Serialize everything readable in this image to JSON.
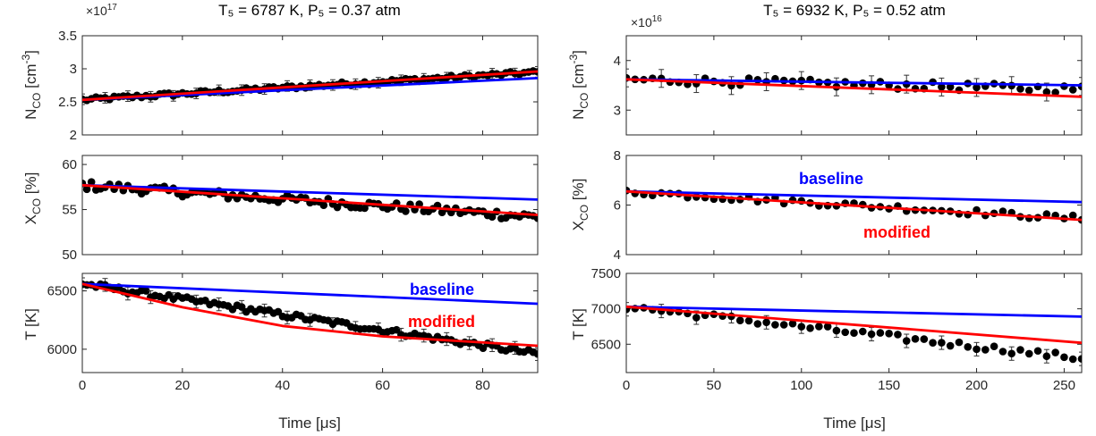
{
  "colors": {
    "baseline": "#0000ff",
    "modified": "#ff0000",
    "points": "#000000",
    "axis": "#262626"
  },
  "columns": [
    {
      "title": "T₅ = 6787 K, P₅ = 0.37 atm",
      "xlabel": "Time [μs]",
      "xticks": [
        "0",
        "20",
        "40",
        "60",
        "80"
      ]
    },
    {
      "title": "T₅ = 6932 K, P₅ = 0.52 atm",
      "xlabel": "Time [μs]",
      "xticks": [
        "0",
        "50",
        "100",
        "150",
        "200",
        "250"
      ]
    }
  ],
  "ylabels": {
    "nco_main": "N",
    "nco_sub": "CO",
    "nco_unit": "[cm",
    "nco_exp": "-3",
    "nco_close": "]",
    "xco_main": "X",
    "xco_sub": "CO",
    "xco_unit": "[%]",
    "t_main": "T [K]"
  },
  "exponents": [
    {
      "base": "×10",
      "exp": "17"
    },
    {
      "base": "×10",
      "exp": "16"
    }
  ],
  "annotations": {
    "baseline": "baseline",
    "modified": "modified"
  },
  "chart_data": [
    {
      "type": "scatter",
      "panel": "N_CO left",
      "title": "T₅ = 6787 K, P₅ = 0.37 atm",
      "xlabel": "",
      "ylabel": "N_CO [cm^-3]",
      "xlim": [
        0,
        91
      ],
      "ylim": [
        2,
        3.5
      ],
      "yticks": [
        "2",
        "2.5",
        "3",
        "3.5"
      ],
      "yscale_label": "×10^17",
      "points": {
        "x_start": 0,
        "x_step": 0.91,
        "y_start": 2.53,
        "y_end": 2.95,
        "noise": 0.03,
        "errorbar": 0.08,
        "errorbar_every": 5
      },
      "series": [
        {
          "name": "baseline",
          "x": [
            0,
            91
          ],
          "y": [
            2.53,
            2.86
          ]
        },
        {
          "name": "modified",
          "x": [
            0,
            91
          ],
          "y": [
            2.53,
            2.96
          ]
        }
      ]
    },
    {
      "type": "scatter",
      "panel": "X_CO left",
      "xlabel": "",
      "ylabel": "X_CO [%]",
      "xlim": [
        0,
        91
      ],
      "ylim": [
        50,
        61
      ],
      "yticks": [
        "50",
        "55",
        "60"
      ],
      "points": {
        "x_start": 0,
        "x_step": 0.91,
        "y_start": 57.7,
        "y_end": 54.2,
        "noise": 0.5,
        "errorbar": 0,
        "errorbar_every": 0
      },
      "series": [
        {
          "name": "baseline",
          "x": [
            0,
            91
          ],
          "y": [
            57.7,
            56.1
          ]
        },
        {
          "name": "modified",
          "x": [
            0,
            91
          ],
          "y": [
            57.7,
            54.4
          ]
        }
      ]
    },
    {
      "type": "scatter",
      "panel": "T left",
      "xlabel": "Time [μs]",
      "ylabel": "T [K]",
      "xlim": [
        0,
        91
      ],
      "ylim": [
        5800,
        6650
      ],
      "yticks": [
        "6000",
        "6500"
      ],
      "points": {
        "x_start": 0,
        "x_step": 0.91,
        "y_start": 6560,
        "y_end": 5960,
        "noise": 25,
        "errorbar": 55,
        "errorbar_every": 5
      },
      "series": [
        {
          "name": "baseline",
          "x": [
            0,
            91
          ],
          "y": [
            6560,
            6390
          ]
        },
        {
          "name": "modified",
          "x": [
            0,
            10,
            20,
            40,
            60,
            91
          ],
          "y": [
            6560,
            6460,
            6360,
            6200,
            6110,
            6030
          ]
        }
      ]
    },
    {
      "type": "scatter",
      "panel": "N_CO right",
      "title": "T₅ = 6932 K, P₅ = 0.52 atm",
      "xlabel": "",
      "ylabel": "N_CO [cm^-3]",
      "xlim": [
        0,
        260
      ],
      "ylim": [
        2.5,
        4.5
      ],
      "yticks": [
        "3",
        "4"
      ],
      "yscale_label": "×10^16",
      "points": {
        "x_start": 0,
        "x_step": 5,
        "y_start": 3.62,
        "y_end": 3.42,
        "noise": 0.08,
        "errorbar": 0.18,
        "errorbar_every": 4
      },
      "series": [
        {
          "name": "baseline",
          "x": [
            0,
            260
          ],
          "y": [
            3.62,
            3.5
          ]
        },
        {
          "name": "modified",
          "x": [
            0,
            260
          ],
          "y": [
            3.62,
            3.27
          ]
        }
      ]
    },
    {
      "type": "scatter",
      "panel": "X_CO right",
      "xlabel": "",
      "ylabel": "X_CO [%]",
      "xlim": [
        0,
        260
      ],
      "ylim": [
        4,
        8
      ],
      "yticks": [
        "4",
        "6",
        "8"
      ],
      "points": {
        "x_start": 0,
        "x_step": 5,
        "y_start": 6.55,
        "y_end": 5.45,
        "noise": 0.12,
        "errorbar": 0,
        "errorbar_every": 0
      },
      "series": [
        {
          "name": "baseline",
          "x": [
            0,
            260
          ],
          "y": [
            6.55,
            6.12
          ]
        },
        {
          "name": "modified",
          "x": [
            0,
            260
          ],
          "y": [
            6.55,
            5.4
          ]
        }
      ]
    },
    {
      "type": "scatter",
      "panel": "T right",
      "xlabel": "Time [μs]",
      "ylabel": "T [K]",
      "xlim": [
        0,
        260
      ],
      "ylim": [
        6100,
        7500
      ],
      "yticks": [
        "6500",
        "7000",
        "7500"
      ],
      "points": {
        "x_start": 0,
        "x_step": 5,
        "y_start": 7030,
        "y_end": 6300,
        "noise": 45,
        "errorbar": 95,
        "errorbar_every": 4
      },
      "series": [
        {
          "name": "baseline",
          "x": [
            0,
            260
          ],
          "y": [
            7030,
            6890
          ]
        },
        {
          "name": "modified",
          "x": [
            0,
            260
          ],
          "y": [
            7030,
            6520
          ]
        }
      ]
    }
  ]
}
